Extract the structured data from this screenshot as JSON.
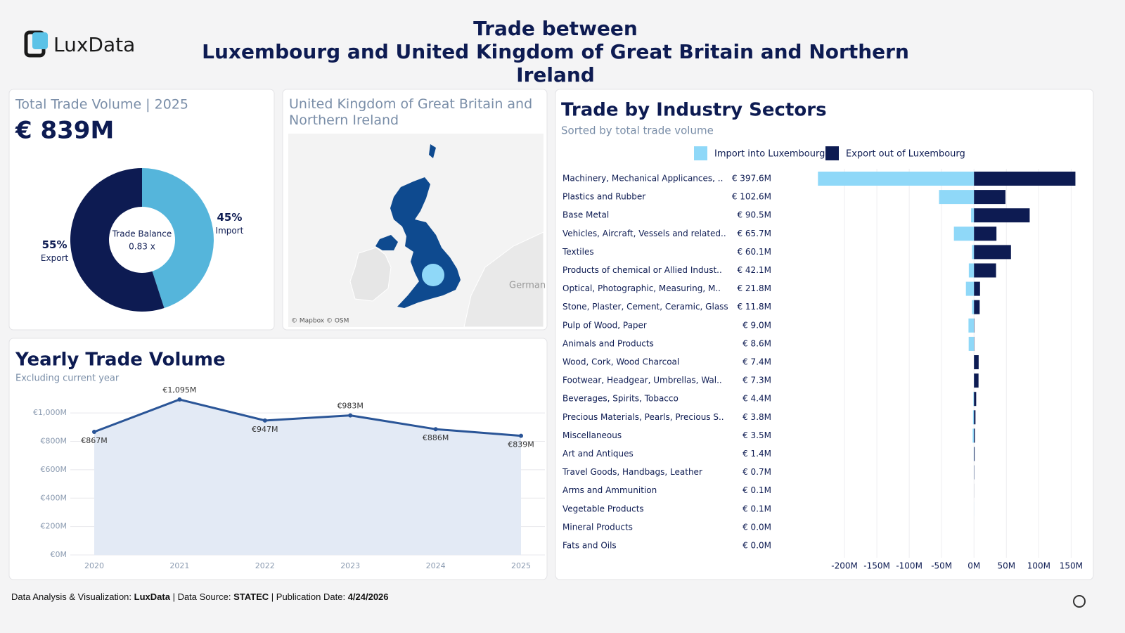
{
  "header": {
    "logo": "LuxData",
    "title_line1": "Trade between",
    "title_line2": "Luxembourg and United Kingdom of Great Britain and Northern Ireland"
  },
  "kpi": {
    "label": "Total Trade Volume | 2025",
    "value": "€ 839M"
  },
  "map": {
    "title": "United Kingdom of Great Britain and Northern Ireland",
    "attribution": "© Mapbox © OSM",
    "place_label": "German"
  },
  "chart_data": [
    {
      "type": "pie",
      "categories": [
        "Import",
        "Export"
      ],
      "values": [
        45,
        55
      ],
      "value_labels": [
        "45%",
        "55%"
      ],
      "colors": [
        "#55b5db",
        "#0d1b52"
      ],
      "center_label": "Trade Balance",
      "center_value": "0.83 x"
    },
    {
      "type": "line",
      "title": "Yearly Trade Volume",
      "subtitle": "Excluding current year",
      "categories": [
        "2020",
        "2021",
        "2022",
        "2023",
        "2024",
        "2025"
      ],
      "values": [
        867,
        1095,
        947,
        983,
        886,
        839
      ],
      "value_labels": [
        "€867M",
        "€1,095M",
        "€947M",
        "€983M",
        "€886M",
        "€839M"
      ],
      "color": "#2a5597",
      "area_color": "#e3eaf5",
      "ylim": [
        0,
        1100
      ],
      "yticks": [
        {
          "value": 0,
          "label": "€0M"
        },
        {
          "value": 200,
          "label": "€200M"
        },
        {
          "value": 400,
          "label": "€400M"
        },
        {
          "value": 600,
          "label": "€600M"
        },
        {
          "value": 800,
          "label": "€800M"
        },
        {
          "value": 1000,
          "label": "€1,000M"
        }
      ],
      "grid": true
    },
    {
      "type": "hbar",
      "title": "Trade by Industry Sectors",
      "subtitle": "Sorted by total trade volume",
      "categories": [
        "Machinery, Mechanical Applicances, ..",
        "Plastics and Rubber",
        "Base Metal",
        "Vehicles, Aircraft, Vessels and related..",
        "Textiles",
        "Products of chemical or Allied Indust..",
        "Optical, Photographic, Measuring, M..",
        "Stone, Plaster, Cement, Ceramic, Glass",
        "Pulp of Wood, Paper",
        "Animals and Products",
        "Wood, Cork, Wood Charcoal",
        "Footwear, Headgear, Umbrellas, Wal..",
        "Beverages, Spirits, Tobacco",
        "Precious Materials, Pearls, Precious S..",
        "Miscellaneous",
        "Art and Antiques",
        "Travel Goods, Handbags, Leather",
        "Arms and Ammunition",
        "Vegetable Products",
        "Mineral Products",
        "Fats and Oils"
      ],
      "total_labels": [
        "€ 397.6M",
        "€ 102.6M",
        "€ 90.5M",
        "€ 65.7M",
        "€ 60.1M",
        "€ 42.1M",
        "€ 21.8M",
        "€ 11.8M",
        "€ 9.0M",
        "€ 8.6M",
        "€ 7.4M",
        "€ 7.3M",
        "€ 4.4M",
        "€ 3.8M",
        "€ 3.5M",
        "€ 1.4M",
        "€ 0.7M",
        "€ 0.1M",
        "€ 0.1M",
        "€ 0.0M",
        "€ 0.0M"
      ],
      "series": [
        {
          "name": "Import into Luxembourg",
          "color": "#8fd8f8",
          "values": [
            -241,
            -54,
            -4.5,
            -31,
            -3,
            -8,
            -12.5,
            -3,
            -8.5,
            -8.2,
            -0.2,
            -0.3,
            -1.0,
            -1.5,
            -2.0,
            -0.4,
            -0.3,
            0,
            -0.1,
            0,
            0
          ]
        },
        {
          "name": "Export out of Luxembourg",
          "color": "#0d1b52",
          "values": [
            156.6,
            48.6,
            86,
            34.7,
            57.1,
            34.1,
            9.3,
            8.8,
            0.5,
            0.4,
            7.2,
            7.0,
            3.4,
            2.3,
            1.5,
            1.0,
            0.4,
            0.1,
            0,
            0,
            0
          ]
        }
      ],
      "xlim": [
        -250,
        180
      ],
      "xticks": [
        {
          "value": -200,
          "label": "-200M"
        },
        {
          "value": -150,
          "label": "-150M"
        },
        {
          "value": -100,
          "label": "-100M"
        },
        {
          "value": -50,
          "label": "-50M"
        },
        {
          "value": 0,
          "label": "0M"
        },
        {
          "value": 50,
          "label": "50M"
        },
        {
          "value": 100,
          "label": "100M"
        },
        {
          "value": 150,
          "label": "150M"
        }
      ],
      "grid": true
    }
  ],
  "footer": {
    "credit_label": "Data Analysis & Visualization:",
    "credit": "LuxData",
    "source_label": "| Data Source:",
    "source": "STATEC",
    "date_label": "| Publication Date:",
    "date": "4/24/2026"
  }
}
